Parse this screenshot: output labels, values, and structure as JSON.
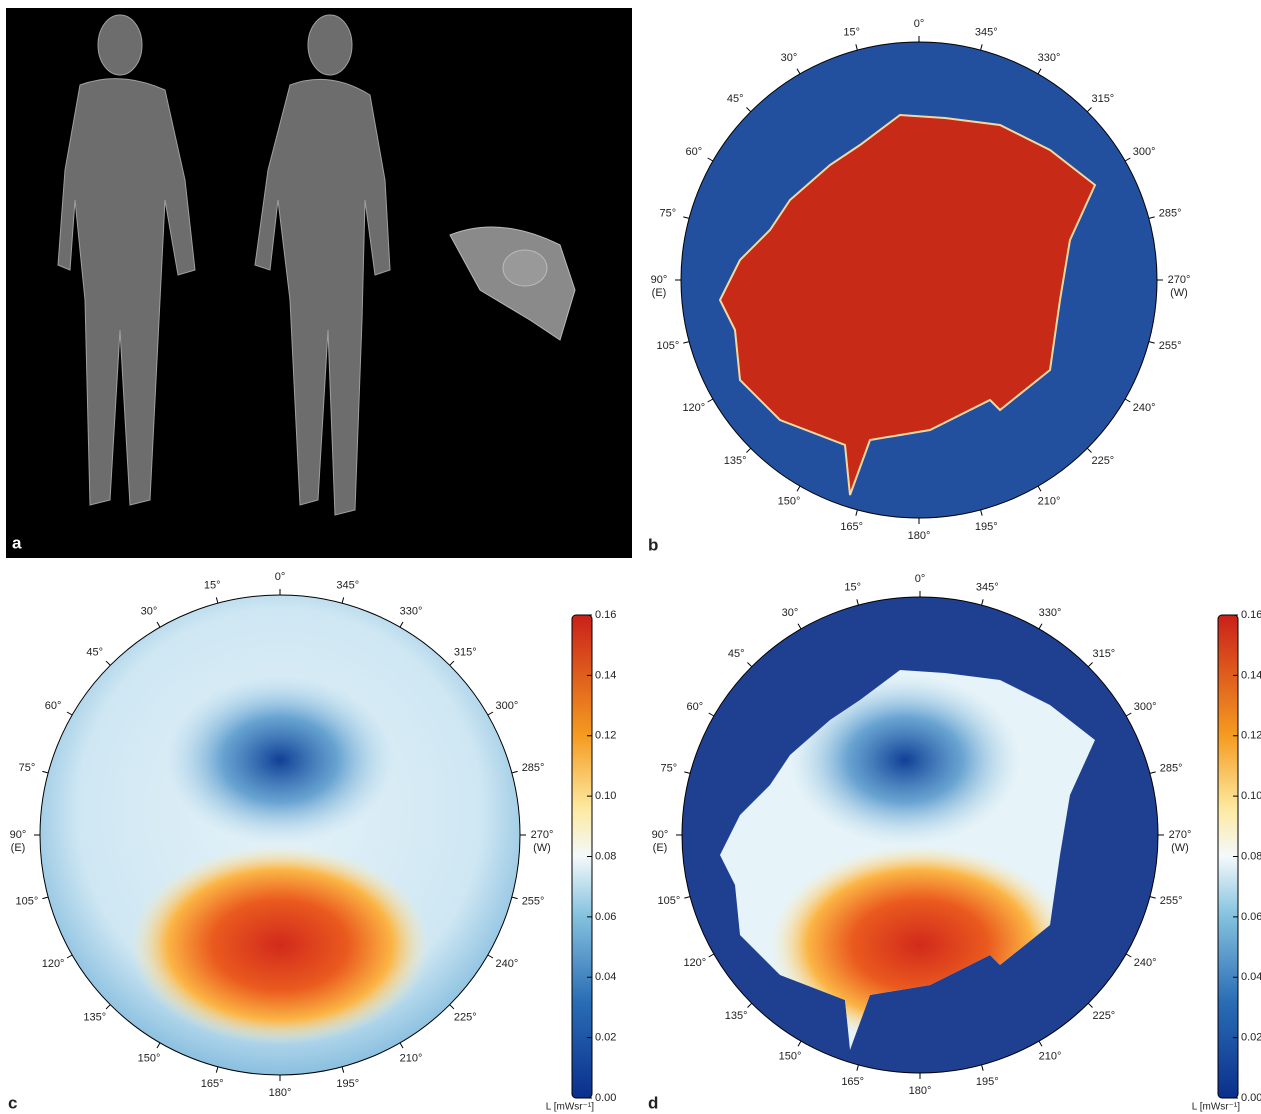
{
  "panels": [
    {
      "label": "a"
    },
    {
      "label": "b",
      "angle_labels": [
        "0°",
        "15°",
        "30°",
        "45°",
        "60°",
        "75°",
        "90°",
        "105°",
        "120°",
        "135°",
        "150°",
        "165°",
        "180°",
        "195°",
        "210°",
        "225°",
        "240°",
        "255°",
        "270°",
        "285°",
        "300°",
        "315°",
        "330°",
        "345°"
      ],
      "east": "(E)",
      "west": "(W)"
    },
    {
      "label": "c",
      "angle_labels": [
        "0°",
        "15°",
        "30°",
        "45°",
        "60°",
        "75°",
        "90°",
        "105°",
        "120°",
        "135°",
        "150°",
        "165°",
        "180°",
        "195°",
        "210°",
        "225°",
        "240°",
        "255°",
        "270°",
        "285°",
        "300°",
        "315°",
        "330°",
        "345°"
      ],
      "east": "(E)",
      "west": "(W)",
      "colorbar": {
        "ticks": [
          "0.00",
          "0.02",
          "0.04",
          "0.06",
          "0.08",
          "0.10",
          "0.12",
          "0.14",
          "0.16"
        ],
        "unit": "L [mWsr⁻¹]"
      }
    },
    {
      "label": "d",
      "angle_labels": [
        "0°",
        "15°",
        "30°",
        "45°",
        "60°",
        "75°",
        "90°",
        "105°",
        "120°",
        "135°",
        "150°",
        "165°",
        "180°",
        "195°",
        "210°",
        "225°",
        "240°",
        "255°",
        "270°",
        "285°",
        "300°",
        "315°",
        "330°",
        "345°"
      ],
      "east": "(E)",
      "west": "(W)",
      "colorbar": {
        "ticks": [
          "0.00",
          "0.02",
          "0.04",
          "0.06",
          "0.08",
          "0.10",
          "0.12",
          "0.14",
          "0.16"
        ],
        "unit": "L [mWsr⁻¹]"
      }
    }
  ]
}
